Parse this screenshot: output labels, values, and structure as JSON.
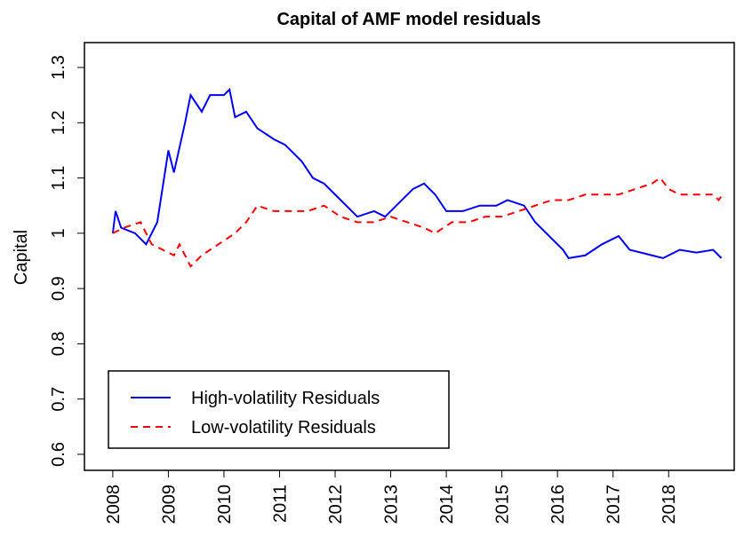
{
  "chart_data": {
    "type": "line",
    "title": "Capital of AMF model residuals",
    "y_label": "Capital",
    "xlim": [
      2007.49,
      2019.18
    ],
    "xticks": [
      2008,
      2009,
      2010,
      2011,
      2012,
      2013,
      2014,
      2015,
      2016,
      2017,
      2018
    ],
    "ylim": [
      0.571,
      1.345
    ],
    "yticks": [
      0.6,
      0.7,
      0.8,
      0.9,
      1.0,
      1.1,
      1.2,
      1.3
    ],
    "legend_position": "bottomleft",
    "series": [
      {
        "name": "High-volatility Residuals",
        "color": "#0000ff",
        "line_style": "solid",
        "x": [
          2008.0,
          2008.05,
          2008.15,
          2008.4,
          2008.6,
          2008.8,
          2009.0,
          2009.1,
          2009.3,
          2009.4,
          2009.6,
          2009.75,
          2010.0,
          2010.1,
          2010.2,
          2010.4,
          2010.6,
          2010.9,
          2011.1,
          2011.4,
          2011.6,
          2011.8,
          2012.0,
          2012.2,
          2012.4,
          2012.7,
          2012.9,
          2013.1,
          2013.4,
          2013.6,
          2013.8,
          2014.0,
          2014.3,
          2014.6,
          2014.9,
          2015.1,
          2015.4,
          2015.6,
          2015.9,
          2016.1,
          2016.2,
          2016.5,
          2016.8,
          2017.1,
          2017.3,
          2017.7,
          2017.9,
          2018.2,
          2018.5,
          2018.8,
          2018.95
        ],
        "values": [
          1.0,
          1.04,
          1.01,
          1.0,
          0.98,
          1.02,
          1.15,
          1.11,
          1.2,
          1.25,
          1.22,
          1.25,
          1.25,
          1.26,
          1.21,
          1.22,
          1.19,
          1.17,
          1.16,
          1.13,
          1.1,
          1.09,
          1.07,
          1.05,
          1.03,
          1.04,
          1.03,
          1.05,
          1.08,
          1.09,
          1.07,
          1.04,
          1.04,
          1.05,
          1.05,
          1.06,
          1.05,
          1.02,
          0.99,
          0.97,
          0.955,
          0.96,
          0.98,
          0.995,
          0.97,
          0.96,
          0.955,
          0.97,
          0.965,
          0.97,
          0.955
        ]
      },
      {
        "name": "Low-volatility Residuals",
        "color": "#ff0000",
        "line_style": "dashed",
        "x": [
          2008.0,
          2008.2,
          2008.5,
          2008.7,
          2008.9,
          2009.1,
          2009.2,
          2009.4,
          2009.6,
          2009.9,
          2010.2,
          2010.4,
          2010.6,
          2010.9,
          2011.2,
          2011.5,
          2011.8,
          2012.1,
          2012.4,
          2012.7,
          2013.0,
          2013.3,
          2013.6,
          2013.8,
          2014.1,
          2014.4,
          2014.7,
          2015.0,
          2015.3,
          2015.6,
          2015.9,
          2016.2,
          2016.5,
          2016.8,
          2017.1,
          2017.4,
          2017.7,
          2017.85,
          2018.0,
          2018.2,
          2018.5,
          2018.8,
          2018.9,
          2018.97
        ],
        "values": [
          1.0,
          1.01,
          1.02,
          0.98,
          0.97,
          0.96,
          0.98,
          0.94,
          0.96,
          0.98,
          1.0,
          1.02,
          1.05,
          1.04,
          1.04,
          1.04,
          1.05,
          1.03,
          1.02,
          1.02,
          1.03,
          1.02,
          1.01,
          1.0,
          1.02,
          1.02,
          1.03,
          1.03,
          1.04,
          1.05,
          1.06,
          1.06,
          1.07,
          1.07,
          1.07,
          1.08,
          1.09,
          1.1,
          1.08,
          1.07,
          1.07,
          1.07,
          1.06,
          1.07
        ]
      }
    ]
  }
}
